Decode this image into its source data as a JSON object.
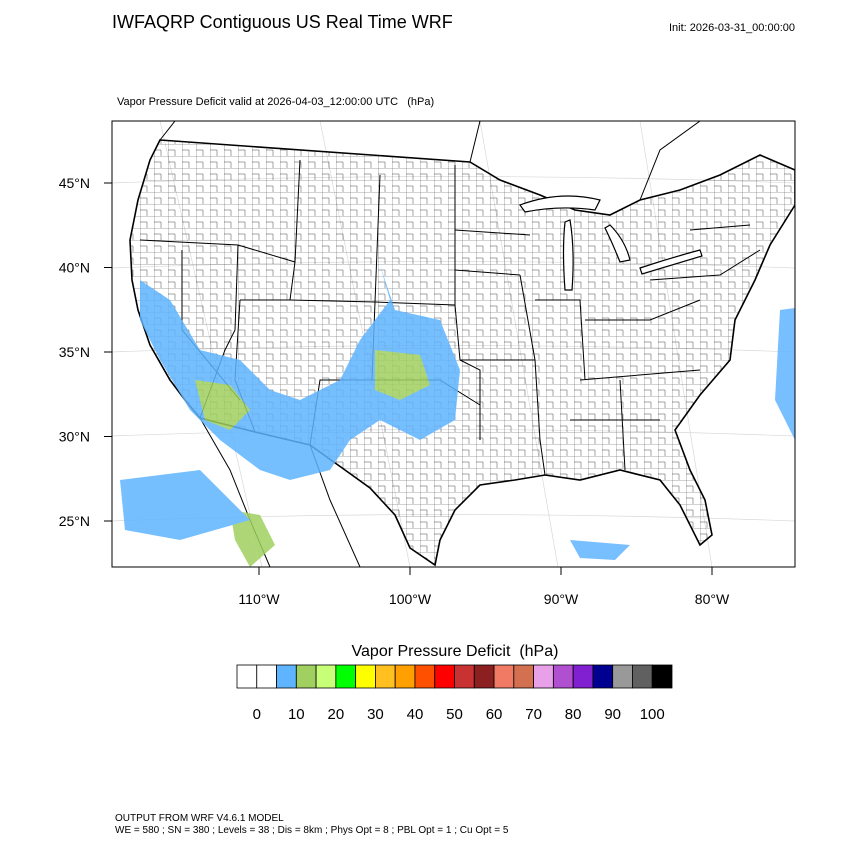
{
  "header": {
    "title": "IWFAQRP Contiguous US Real Time WRF",
    "init": "Init: 2026-03-31_00:00:00",
    "subtitle": "Vapor Pressure Deficit valid at 2026-04-03_12:00:00 UTC   (hPa)"
  },
  "latitudes": [
    {
      "value": 45,
      "label": "45°N"
    },
    {
      "value": 40,
      "label": "40°N"
    },
    {
      "value": 35,
      "label": "35°N"
    },
    {
      "value": 30,
      "label": "30°N"
    },
    {
      "value": 25,
      "label": "25°N"
    }
  ],
  "longitudes": [
    {
      "value": 110,
      "label": "110°W"
    },
    {
      "value": 100,
      "label": "100°W"
    },
    {
      "value": 90,
      "label": "90°W"
    },
    {
      "value": 80,
      "label": "80°W"
    }
  ],
  "colorbar": {
    "title": "Vapor Pressure Deficit  (hPa)",
    "colors": [
      "#ffffff",
      "#ffffff",
      "#5fb4ff",
      "#a0d060",
      "#c8ff78",
      "#00ff00",
      "#ffff00",
      "#ffc020",
      "#ffa000",
      "#ff5000",
      "#ff0000",
      "#c83232",
      "#8c2020",
      "#f07a64",
      "#d27050",
      "#e8a0e8",
      "#b050d0",
      "#8020d0",
      "#000090",
      "#999999",
      "#606060",
      "#000000"
    ],
    "labels": [
      0,
      10,
      20,
      30,
      40,
      50,
      60,
      70,
      80,
      90,
      100
    ]
  },
  "footer": [
    "OUTPUT FROM WRF V4.6.1 MODEL",
    "WE = 580 ; SN = 380 ; Levels = 38 ; Dis = 8km ; Phys Opt = 8 ; PBL Opt = 1 ; Cu Opt = 5"
  ]
}
